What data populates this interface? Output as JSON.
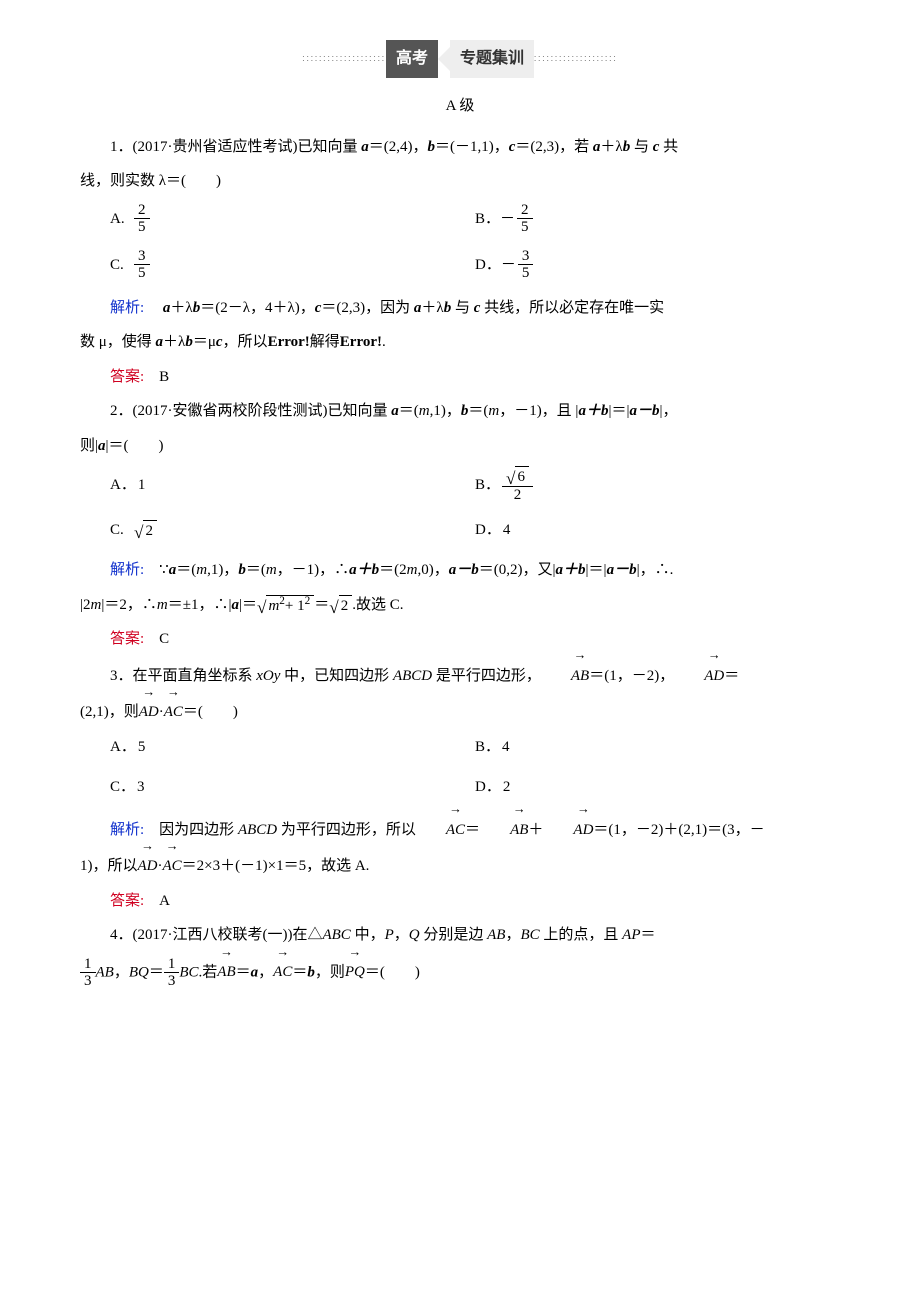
{
  "banner": {
    "left": "高考",
    "right": "专题集训"
  },
  "level": "A 级",
  "q1": {
    "stem_prefix": "1．(2017·贵州省适应性考试)已知向量 ",
    "a": "a",
    "a_val": "＝(2,4)，",
    "b": "b",
    "b_val": "＝(－1,1)，",
    "c": "c",
    "c_val": "＝(2,3)，若 ",
    "expr_head": "a",
    "expr_plus": "＋λ",
    "expr_b": "b",
    "expr_mid": " 与 ",
    "expr_c": "c",
    "expr_tail": " 共",
    "line2": "线，则实数 λ＝(　　)",
    "optA_tag": "A.",
    "optA_num": "2",
    "optA_den": "5",
    "optB_tag": "B．－",
    "optB_num": "2",
    "optB_den": "5",
    "optC_tag": "C.",
    "optC_num": "3",
    "optC_den": "5",
    "optD_tag": "D．－",
    "optD_num": "3",
    "optD_den": "5",
    "analysis_label": "解析:　",
    "analysis_text": "＝(2－λ，4＋λ)，",
    "analysis_c": "c",
    "analysis_c_val": "＝(2,3)，因为 ",
    "analysis_tail": " 共线，所以必定存在唯一实",
    "analysis_line2_pre": "数 μ，使得 ",
    "analysis_line2_mid": "＝μ",
    "analysis_line2_c": "c",
    "analysis_line2_tail": "，所以",
    "err1": "Error!",
    "mid_err": "解得",
    "err2": "Error!",
    "dot": ".",
    "answer_label": "答案:　",
    "answer": "B"
  },
  "q2": {
    "stem_prefix": "2．(2017·安徽省两校阶段性测试)已知向量 ",
    "a": "a",
    "a_val": "＝(",
    "m": "m",
    "a_val2": ",1)，",
    "b": "b",
    "b_val": "＝(",
    "b_val2": "，－1)，且 |",
    "sum": "a＋b",
    "eq": "|＝|",
    "diff": "a－b",
    "tail": "|，",
    "line2_pre": "则|",
    "line2_a": "a",
    "line2_tail": "|＝(　　)",
    "optA_tag": "A．",
    "optA": "1",
    "optB_tag": "B．",
    "optB_num_inner": "6",
    "optB_den": "2",
    "optC_tag": "C.",
    "optC_rad": "2",
    "optD_tag": "D．",
    "optD": "4",
    "analysis_label": "解析:　",
    "ana_p1": "∵",
    "ana_a": "a",
    "ana_av": "＝(",
    "ana_m": "m",
    "ana_av2": ",1)，",
    "ana_b": "b",
    "ana_bv": "＝(",
    "ana_bv2": "，－1)，∴",
    "ana_sum": "a＋b",
    "ana_sv": "＝(2",
    "ana_sm": "m",
    "ana_sv2": ",0)，",
    "ana_diff": "a－b",
    "ana_dv": "＝(0,2)，又|",
    "ana_sum2": "a＋b",
    "ana_eq": "|＝|",
    "ana_diff2": "a－b",
    "ana_tail": "|，∴.",
    "ana_l2_pre": "|2",
    "ana_l2_m": "m",
    "ana_l2_a": "|＝2，∴",
    "ana_l2_m2": "m",
    "ana_l2_b": "＝±1，∴|",
    "ana_l2_av": "a",
    "ana_l2_c": "|＝",
    "ana_rad_in_m": "m",
    "ana_rad_in_tail": "+ 1",
    "ana_l2_eq": "＝",
    "ana_l2_r2": "2",
    "ana_l2_end": ".故选 C.",
    "answer_label": "答案:　",
    "answer": "C"
  },
  "q3": {
    "stem_prefix": "3．在平面直角坐标系 ",
    "xoy": "xOy",
    "mid": " 中，已知四边形 ",
    "abcd": "ABCD",
    "mid2": " 是平行四边形，",
    "AB": "AB",
    "ab_v": "＝(1，－2)，",
    "AD": "AD",
    "ad_v": "＝",
    "line2_pre": "(2,1)，则",
    "AD2": "AD",
    "dot": "·",
    "AC": "AC",
    "line2_tail": "＝(　　)",
    "optA_tag": "A．",
    "optA": "5",
    "optB_tag": "B．",
    "optB": "4",
    "optC_tag": "C．",
    "optC": "3",
    "optD_tag": "D．",
    "optD": "2",
    "analysis_label": "解析:　",
    "ana_1": "因为四边形 ",
    "ana_abcd": "ABCD",
    "ana_2": " 为平行四边形，所以",
    "ana_AC": "AC",
    "ana_eq": "＝",
    "ana_AB": "AB",
    "ana_plus": "＋",
    "ana_AD": "AD",
    "ana_v": "＝(1，－2)＋(2,1)＝(3，－",
    "ana_l2_pre": "1)，所以",
    "ana_AD2": "AD",
    "ana_dot": "·",
    "ana_AC2": "AC",
    "ana_l2_tail": "＝2×3＋(－1)×1＝5，故选 A.",
    "answer_label": "答案:　",
    "answer": "A"
  },
  "q4": {
    "stem_prefix": "4．(2017·江西八校联考(一))在△",
    "ABC": "ABC",
    "mid": " 中，",
    "P": "P",
    "comma": "，",
    "Q": "Q",
    "mid2": " 分别是边 ",
    "AB": "AB",
    "comma2": "，",
    "BC": "BC",
    "mid3": " 上的点，且 ",
    "AP": "AP",
    "eq": "＝",
    "f1_num": "1",
    "f1_den": "3",
    "AB2": "AB",
    "comma3": "，",
    "BQ": "BQ",
    "eq2": "＝",
    "f2_num": "1",
    "f2_den": "3",
    "BC2": "BC",
    "dot": ".若",
    "vAB": "AB",
    "eqa": "＝",
    "va": "a",
    "comma4": "，",
    "vAC": "AC",
    "eqb": "＝",
    "vb": "b",
    "comma5": "，则",
    "vPQ": "PQ",
    "tail": "＝(　　)"
  },
  "colors": {
    "analysis": "#1030cc",
    "answer": "#d00020",
    "text": "#000000",
    "bg": "#ffffff"
  },
  "typography": {
    "body_fontsize_pt": 11,
    "line_height": 1.9
  }
}
